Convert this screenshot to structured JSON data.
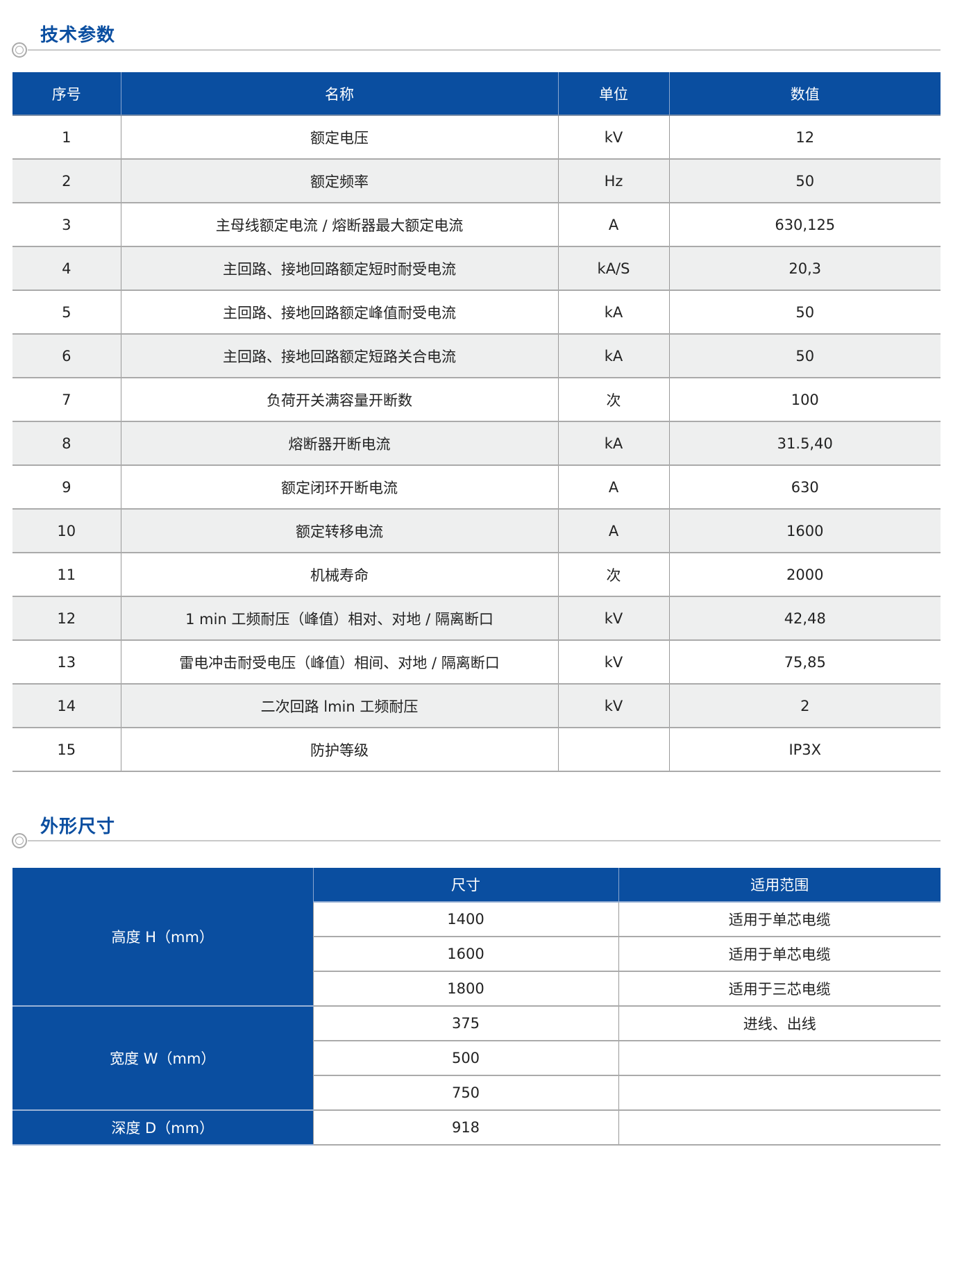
{
  "sections": {
    "tech_params_title": "技术参数",
    "dimensions_title": "外形尺寸"
  },
  "tech_table": {
    "headers": [
      "序号",
      "名称",
      "单位",
      "数值"
    ],
    "rows": [
      [
        "1",
        "额定电压",
        "kV",
        "12"
      ],
      [
        "2",
        "额定频率",
        "Hz",
        "50"
      ],
      [
        "3",
        "主母线额定电流 / 熔断器最大额定电流",
        "A",
        "630,125"
      ],
      [
        "4",
        "主回路、接地回路额定短时耐受电流",
        "kA/S",
        "20,3"
      ],
      [
        "5",
        "主回路、接地回路额定峰值耐受电流",
        "kA",
        "50"
      ],
      [
        "6",
        "主回路、接地回路额定短路关合电流",
        "kA",
        "50"
      ],
      [
        "7",
        "负荷开关满容量开断数",
        "次",
        "100"
      ],
      [
        "8",
        "熔断器开断电流",
        "kA",
        "31.5,40"
      ],
      [
        "9",
        "额定闭环开断电流",
        "A",
        "630"
      ],
      [
        "10",
        "额定转移电流",
        "A",
        "1600"
      ],
      [
        "11",
        "机械寿命",
        "次",
        "2000"
      ],
      [
        "12",
        "1 min 工频耐压（峰值）相对、对地 / 隔离断口",
        "kV",
        "42,48"
      ],
      [
        "13",
        "雷电冲击耐受电压（峰值）相间、对地 / 隔离断口",
        "kV",
        "75,85"
      ],
      [
        "14",
        "二次回路 lmin 工频耐压",
        "kV",
        "2"
      ],
      [
        "15",
        "防护等级",
        "",
        "IP3X"
      ]
    ]
  },
  "dim_table": {
    "headers": [
      "尺寸",
      "适用范围"
    ],
    "groups": [
      {
        "label": "高度  H（mm）",
        "rows": [
          [
            "1400",
            "适用于单芯电缆"
          ],
          [
            "1600",
            "适用于单芯电缆"
          ],
          [
            "1800",
            "适用于三芯电缆"
          ]
        ]
      },
      {
        "label": "宽度  W（mm）",
        "rows": [
          [
            "375",
            "进线、出线"
          ],
          [
            "500",
            ""
          ],
          [
            "750",
            ""
          ]
        ]
      },
      {
        "label": "深度  D（mm）",
        "rows": [
          [
            "918",
            ""
          ]
        ]
      }
    ]
  },
  "colors": {
    "brand_blue": "#0a4ea0",
    "alt_row": "#eeefef"
  }
}
